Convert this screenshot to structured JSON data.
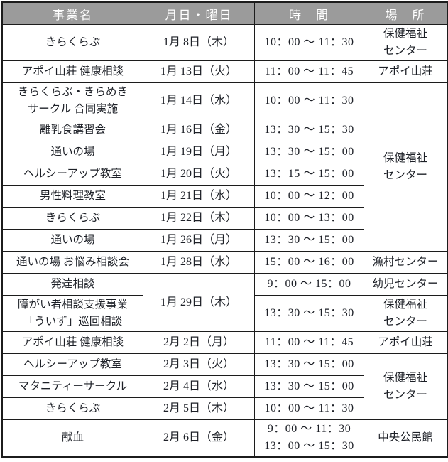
{
  "colors": {
    "header_bg": "#9b9b9b",
    "header_text": "#ffffff",
    "border": "#1c1c1c",
    "text": "#1d2027",
    "page_bg": "#ffffff"
  },
  "table": {
    "columns": [
      {
        "key": "event-name",
        "label": "事業名"
      },
      {
        "key": "date",
        "label": "月日・曜日"
      },
      {
        "key": "time",
        "label": "時　間"
      },
      {
        "key": "place",
        "label": "場　所"
      }
    ],
    "rows": [
      {
        "name": [
          "きらくらぶ"
        ],
        "date": "1月 8日（木）",
        "time": [
          "10：00 ～ 11：30"
        ],
        "place": [
          "保健福祉",
          "センター"
        ]
      },
      {
        "name": [
          "アポイ山荘 健康相談"
        ],
        "date": "1月 13日（火）",
        "time": [
          "11：00 ～ 11：45"
        ],
        "place": [
          "アポイ山荘"
        ]
      },
      {
        "name": [
          "きらくらぶ・きらめき",
          "サークル 合同実施"
        ],
        "date": "1月 14日（水）",
        "time": [
          "10：00 ～ 11：30"
        ],
        "place": [
          "保健福祉",
          "センター"
        ],
        "place_rowspan": 7
      },
      {
        "name": [
          "離乳食講習会"
        ],
        "date": "1月 16日（金）",
        "time": [
          "13：30 ～ 15：30"
        ]
      },
      {
        "name": [
          "通いの場"
        ],
        "date": "1月 19日（月）",
        "time": [
          "13：30 ～ 15：00"
        ]
      },
      {
        "name": [
          "ヘルシーアップ教室"
        ],
        "date": "1月 20日（火）",
        "time": [
          "13：15 ～ 15：00"
        ]
      },
      {
        "name": [
          "男性料理教室"
        ],
        "date": "1月 21日（水）",
        "time": [
          "10：00 ～ 12：00"
        ]
      },
      {
        "name": [
          "きらくらぶ"
        ],
        "date": "1月 22日（木）",
        "time": [
          "10：00 ～ 13：00"
        ]
      },
      {
        "name": [
          "通いの場"
        ],
        "date": "1月 26日（月）",
        "time": [
          "13：30 ～ 15：00"
        ]
      },
      {
        "name": [
          "通いの場 お悩み相談会"
        ],
        "date": "1月 28日（水）",
        "time": [
          "15：00 ～ 16：00"
        ],
        "place": [
          "漁村センター"
        ]
      },
      {
        "name": [
          "発達相談"
        ],
        "date": "1月 29日（木）",
        "date_rowspan": 2,
        "time": [
          "9：00 ～ 15：00"
        ],
        "place": [
          "幼児センター"
        ]
      },
      {
        "name": [
          "障がい者相談支援事業",
          "「ういず」巡回相談"
        ],
        "time": [
          "13：30 ～ 15：30"
        ],
        "place": [
          "保健福祉",
          "センター"
        ]
      },
      {
        "name": [
          "アポイ山荘 健康相談"
        ],
        "date": "2月 2日（月）",
        "time": [
          "11：00 ～ 11：45"
        ],
        "place": [
          "アポイ山荘"
        ]
      },
      {
        "name": [
          "ヘルシーアップ教室"
        ],
        "date": "2月 3日（火）",
        "time": [
          "13：30 ～ 15：00"
        ],
        "place": [
          "保健福祉",
          "センター"
        ],
        "place_rowspan": 3
      },
      {
        "name": [
          "マタニティーサークル"
        ],
        "date": "2月 4日（水）",
        "time": [
          "13：30 ～ 15：00"
        ]
      },
      {
        "name": [
          "きらくらぶ"
        ],
        "date": "2月 5日（木）",
        "time": [
          "10：00 ～ 11：30"
        ]
      },
      {
        "name": [
          "献血"
        ],
        "date": "2月 6日（金）",
        "time": [
          "9：00 ～ 11：30",
          "13：00 ～ 15：30"
        ],
        "place": [
          "中央公民館"
        ]
      }
    ]
  }
}
